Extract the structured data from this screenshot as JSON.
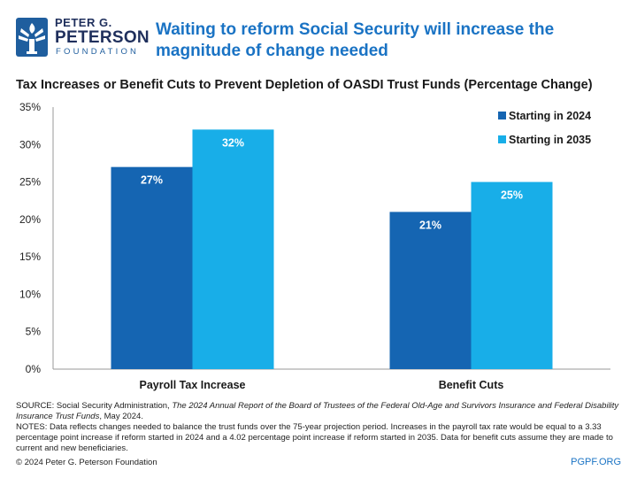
{
  "logo": {
    "line1": "PETER G.",
    "line2": "PETERSON",
    "line3": "FOUNDATION"
  },
  "headline": "Waiting to reform Social Security will increase the magnitude of change needed",
  "chart_data": {
    "type": "bar",
    "title": "Tax Increases or Benefit Cuts to Prevent Depletion of OASDI Trust Funds (Percentage Change)",
    "categories": [
      "Payroll Tax Increase",
      "Benefit Cuts"
    ],
    "series": [
      {
        "name": "Starting in 2024",
        "values": [
          27,
          21
        ],
        "labels": [
          "27%",
          "21%"
        ],
        "color": "#1565b2"
      },
      {
        "name": "Starting in 2035",
        "values": [
          32,
          25
        ],
        "labels": [
          "32%",
          "25%"
        ],
        "color": "#18aee8"
      }
    ],
    "y_ticks": [
      0,
      5,
      10,
      15,
      20,
      25,
      30,
      35
    ],
    "y_tick_labels": [
      "0%",
      "5%",
      "10%",
      "15%",
      "20%",
      "25%",
      "30%",
      "35%"
    ],
    "ylim": [
      0,
      35
    ],
    "xlabel": "",
    "ylabel": "",
    "legend_position": "top-right",
    "grid": false
  },
  "footer": {
    "source_prefix": "SOURCE: Social Security Administration, ",
    "source_title": "The 2024 Annual Report of the Board of Trustees of the Federal Old-Age and Survivors Insurance and Federal Disability Insurance Trust Funds",
    "source_suffix": ", May 2024.",
    "notes": "NOTES: Data reflects changes needed to balance the trust funds over the 75-year projection period. Increases in the payroll tax rate would be equal to a 3.33 percentage point increase if reform started in 2024 and a 4.02 percentage point increase if reform started in 2035. Data for benefit cuts assume they are made to current and new beneficiaries.",
    "copyright": "© 2024 Peter G. Peterson Foundation",
    "site": "PGPF.ORG"
  },
  "colors": {
    "headline": "#1a73c4",
    "navy": "#1f2f5c",
    "series1": "#1565b2",
    "series2": "#18aee8"
  }
}
